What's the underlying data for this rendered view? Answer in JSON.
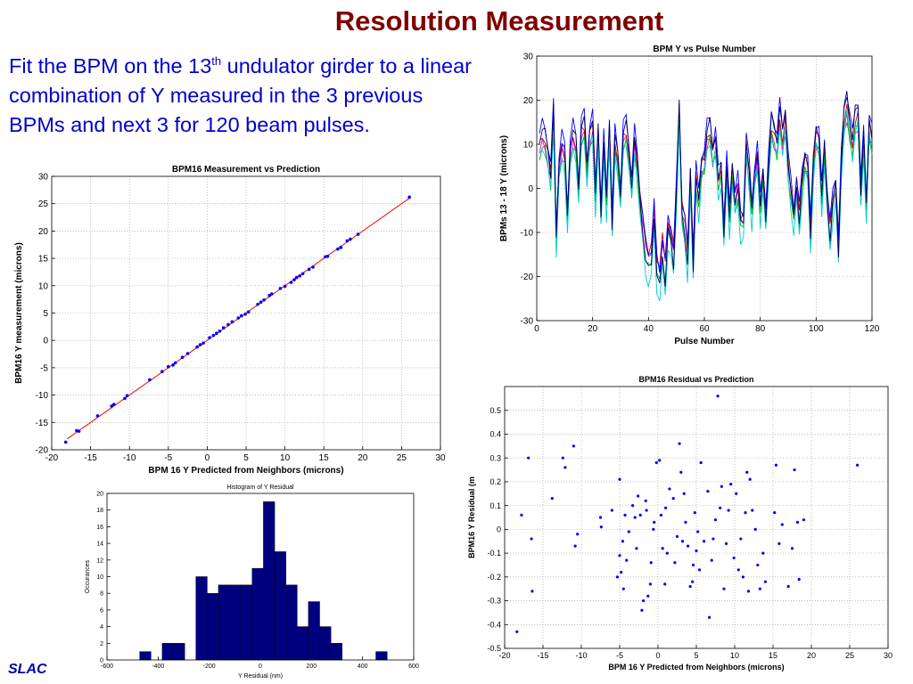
{
  "slide": {
    "title": "Resolution Measurement",
    "body_before_sup": "Fit the BPM on the 13",
    "body_sup": "th",
    "body_after_sup": " undulator girder to a linear combination of Y measured in the 3 previous BPMs and next 3 for 120 beam pulses.",
    "logo_text": "SLAC"
  },
  "colors": {
    "title": "#7f0000",
    "body_text": "#0000cc",
    "logo": "#0000aa",
    "marker": "#0000ff",
    "fit_line": "#ff0000",
    "bar": "#00007f"
  },
  "chart_data": [
    {
      "id": "pulse",
      "type": "line",
      "title": "BPM Y vs Pulse Number",
      "xlabel": "Pulse Number",
      "ylabel": "BPMs 13 - 18 Y (microns)",
      "xlim": [
        0,
        120
      ],
      "ylim": [
        -30,
        30
      ],
      "xticks": [
        0,
        20,
        40,
        60,
        80,
        100,
        120
      ],
      "yticks": [
        -30,
        -20,
        -10,
        0,
        10,
        20,
        30
      ],
      "grid": true,
      "x": [
        1,
        2,
        3,
        4,
        5,
        6,
        7,
        8,
        9,
        10,
        11,
        12,
        13,
        14,
        15,
        16,
        17,
        18,
        19,
        20,
        21,
        22,
        23,
        24,
        25,
        26,
        27,
        28,
        29,
        30,
        31,
        32,
        33,
        34,
        35,
        36,
        37,
        38,
        39,
        40,
        41,
        42,
        43,
        44,
        45,
        46,
        47,
        48,
        49,
        50,
        51,
        52,
        53,
        54,
        55,
        56,
        57,
        58,
        59,
        60,
        61,
        62,
        63,
        64,
        65,
        66,
        67,
        68,
        69,
        70,
        71,
        72,
        73,
        74,
        75,
        76,
        77,
        78,
        79,
        80,
        81,
        82,
        83,
        84,
        85,
        86,
        87,
        88,
        89,
        90,
        91,
        92,
        93,
        94,
        95,
        96,
        97,
        98,
        99,
        100,
        101,
        102,
        103,
        104,
        105,
        106,
        107,
        108,
        109,
        110,
        111,
        112,
        113,
        114,
        115,
        116,
        117,
        118,
        119,
        120
      ],
      "base": [
        8,
        10,
        9,
        6,
        2,
        14,
        -10,
        4,
        8,
        6,
        -6,
        7,
        10,
        8,
        -1,
        11,
        12,
        3,
        10,
        12,
        -2,
        10,
        -5,
        8,
        -3,
        11,
        -7,
        9,
        5,
        -2,
        10,
        11,
        6,
        0,
        9,
        4,
        -3,
        -8,
        -13,
        -15,
        -14,
        -5,
        -16,
        -18,
        -12,
        -17,
        -8,
        -10,
        -14,
        -1,
        14,
        -5,
        -8,
        -14,
        2,
        -15,
        2,
        -3,
        4,
        5,
        10,
        11,
        6,
        9,
        1,
        3,
        -9,
        4,
        -6,
        3,
        -3,
        0,
        -7,
        -7,
        8,
        3,
        -5,
        2,
        6,
        -4,
        2,
        -6,
        4,
        12,
        10,
        8,
        14,
        9,
        13,
        4,
        -1,
        -6,
        0,
        -6,
        1,
        5,
        4,
        -9,
        4,
        10,
        9,
        -2,
        7,
        -3,
        -9,
        -3,
        0,
        -12,
        4,
        13,
        16,
        12,
        8,
        13,
        14,
        -1,
        9,
        -4,
        12,
        9
      ],
      "series_offsets": [
        0,
        1.5,
        -1.5,
        3,
        -3,
        0.8
      ],
      "series_colors": [
        "#ff00ff",
        "#cc0000",
        "#00aa00",
        "#0000ff",
        "#00cccc",
        "#000066"
      ]
    },
    {
      "id": "meas",
      "type": "scatter",
      "title": "BPM16 Measurement vs Prediction",
      "xlabel": "BPM 16 Y Predicted from Neighbors (microns)",
      "ylabel": "BPM16 Y measurement (microns)",
      "xlim": [
        -20,
        30
      ],
      "ylim": [
        -20,
        30
      ],
      "xticks": [
        -20,
        -15,
        -10,
        -5,
        0,
        5,
        10,
        15,
        20,
        25,
        30
      ],
      "yticks": [
        -20,
        -15,
        -10,
        -5,
        0,
        5,
        10,
        15,
        20,
        25,
        30
      ],
      "grid": true,
      "fit_line": {
        "x": [
          -18,
          26
        ],
        "y": [
          -18,
          26
        ]
      },
      "x": [
        -18.2,
        -16.8,
        -16.5,
        -14.1,
        -12.3,
        -12.0,
        -10.6,
        -10.3,
        -7.4,
        -5.8,
        -5.0,
        -4.4,
        -4.1,
        -3.2,
        -2.5,
        -1.3,
        -0.9,
        -0.5,
        0.3,
        0.8,
        1.2,
        1.6,
        2.1,
        2.7,
        3.2,
        4.0,
        4.4,
        4.9,
        5.3,
        6.5,
        6.9,
        7.3,
        8.0,
        8.3,
        9.4,
        10.0,
        10.8,
        11.2,
        11.5,
        11.9,
        12.3,
        13.1,
        13.6,
        15.2,
        15.5,
        16.8,
        17.2,
        18.0,
        18.4,
        19.4,
        26.0
      ],
      "y": [
        -18.6,
        -16.5,
        -16.6,
        -13.8,
        -12.0,
        -11.7,
        -10.6,
        -10.1,
        -7.2,
        -5.7,
        -4.8,
        -4.5,
        -4.1,
        -3.1,
        -2.4,
        -1.2,
        -0.8,
        -0.5,
        0.5,
        0.9,
        1.3,
        1.7,
        2.3,
        2.9,
        3.4,
        4.1,
        4.5,
        4.8,
        5.2,
        6.6,
        7.0,
        7.4,
        8.2,
        8.5,
        9.5,
        9.9,
        10.6,
        11.1,
        11.5,
        11.8,
        12.2,
        13.0,
        13.4,
        15.3,
        15.4,
        16.7,
        17.0,
        18.2,
        18.5,
        19.4,
        26.2
      ]
    },
    {
      "id": "hist",
      "type": "bar",
      "title": "Histogram of Y Residual",
      "xlabel": "Y Residual (nm)",
      "ylabel": "Occurances",
      "xlim": [
        -600,
        600
      ],
      "ylim": [
        0,
        20
      ],
      "xticks": [
        -600,
        -400,
        -200,
        0,
        200,
        400,
        600
      ],
      "yticks": [
        0,
        2,
        4,
        6,
        8,
        10,
        12,
        14,
        16,
        18,
        20
      ],
      "grid": false,
      "bin_width": 44,
      "bin_centers": [
        -450,
        -362,
        -318,
        -230,
        -186,
        -142,
        -98,
        -54,
        -10,
        34,
        78,
        122,
        166,
        210,
        254,
        298,
        342,
        386,
        474
      ],
      "values": [
        1,
        2,
        2,
        10,
        8,
        9,
        9,
        9,
        11,
        19,
        13,
        9,
        4,
        7,
        4,
        2,
        0,
        0,
        1
      ]
    },
    {
      "id": "resid",
      "type": "scatter",
      "title": "BPM16 Residual vs Prediction",
      "xlabel": "BPM 16 Y Predicted from Neighbors (microns)",
      "ylabel": "BPM16 Y Residual (m",
      "xlim": [
        -20,
        30
      ],
      "ylim": [
        -0.5,
        0.6
      ],
      "xticks": [
        -20,
        -15,
        -10,
        -5,
        0,
        5,
        10,
        15,
        20,
        25,
        30
      ],
      "yticks": [
        -0.5,
        -0.4,
        -0.3,
        -0.2,
        -0.1,
        0,
        0.1,
        0.2,
        0.3,
        0.4,
        0.5
      ],
      "ytick_labels": [
        "-0.5",
        "-0.4",
        "-0.3",
        "-0.2",
        "-0.1",
        "0",
        "0.1",
        "0.2",
        "0.3",
        "0.4",
        "0.5"
      ],
      "grid": true,
      "x": [
        -18.4,
        -17.8,
        -16.9,
        -16.5,
        -16.4,
        -13.8,
        -12.4,
        -12.1,
        -11.0,
        -10.8,
        -10.5,
        -7.5,
        -7.4,
        -6.0,
        -5.3,
        -5.0,
        -5.0,
        -4.8,
        -4.6,
        -4.5,
        -4.3,
        -4.1,
        -3.8,
        -3.3,
        -3.0,
        -2.8,
        -2.6,
        -2.3,
        -2.1,
        -1.9,
        -1.6,
        -1.5,
        -1.3,
        -1.0,
        -0.9,
        -0.6,
        -0.5,
        -0.2,
        0.2,
        0.4,
        0.6,
        0.9,
        1.0,
        1.2,
        1.5,
        2.0,
        2.2,
        2.5,
        2.8,
        3.0,
        3.2,
        3.4,
        3.6,
        3.9,
        4.2,
        4.5,
        4.6,
        4.8,
        5.0,
        5.2,
        5.4,
        5.6,
        6.0,
        6.5,
        6.7,
        7.0,
        7.2,
        7.5,
        7.8,
        8.1,
        8.3,
        8.6,
        8.9,
        9.2,
        9.5,
        9.9,
        10.2,
        10.5,
        10.8,
        11.1,
        11.4,
        11.6,
        11.8,
        12.0,
        12.3,
        12.7,
        13.0,
        13.3,
        13.7,
        14.0,
        15.2,
        15.4,
        15.8,
        16.2,
        17.0,
        17.5,
        17.8,
        18.2,
        18.4,
        19.0,
        26.0
      ],
      "y": [
        -0.43,
        0.06,
        0.3,
        -0.04,
        -0.26,
        0.13,
        0.3,
        0.26,
        0.35,
        -0.07,
        -0.02,
        0.05,
        0.01,
        0.08,
        -0.2,
        -0.11,
        0.21,
        -0.18,
        -0.05,
        -0.25,
        0.06,
        -0.13,
        -0.01,
        0.1,
        0.05,
        -0.08,
        0.14,
        0.06,
        -0.34,
        -0.3,
        0.12,
        0.08,
        -0.28,
        -0.23,
        -0.14,
        0.0,
        0.03,
        0.28,
        0.29,
        0.06,
        -0.08,
        -0.23,
        0.09,
        -0.1,
        0.17,
        0.13,
        -0.14,
        -0.03,
        0.36,
        0.24,
        -0.05,
        0.15,
        0.03,
        -0.07,
        -0.24,
        -0.22,
        -0.15,
        0.07,
        -0.09,
        -0.01,
        -0.17,
        0.28,
        -0.05,
        0.16,
        -0.37,
        -0.13,
        -0.04,
        0.04,
        0.56,
        0.09,
        0.18,
        -0.25,
        -0.06,
        0.08,
        0.19,
        -0.12,
        0.15,
        -0.17,
        -0.04,
        -0.2,
        0.07,
        0.24,
        -0.26,
        0.21,
        0.08,
        0.0,
        -0.15,
        -0.25,
        -0.1,
        -0.22,
        0.07,
        0.27,
        -0.06,
        0.02,
        -0.24,
        -0.08,
        0.25,
        0.03,
        -0.21,
        0.04,
        0.27
      ]
    }
  ]
}
